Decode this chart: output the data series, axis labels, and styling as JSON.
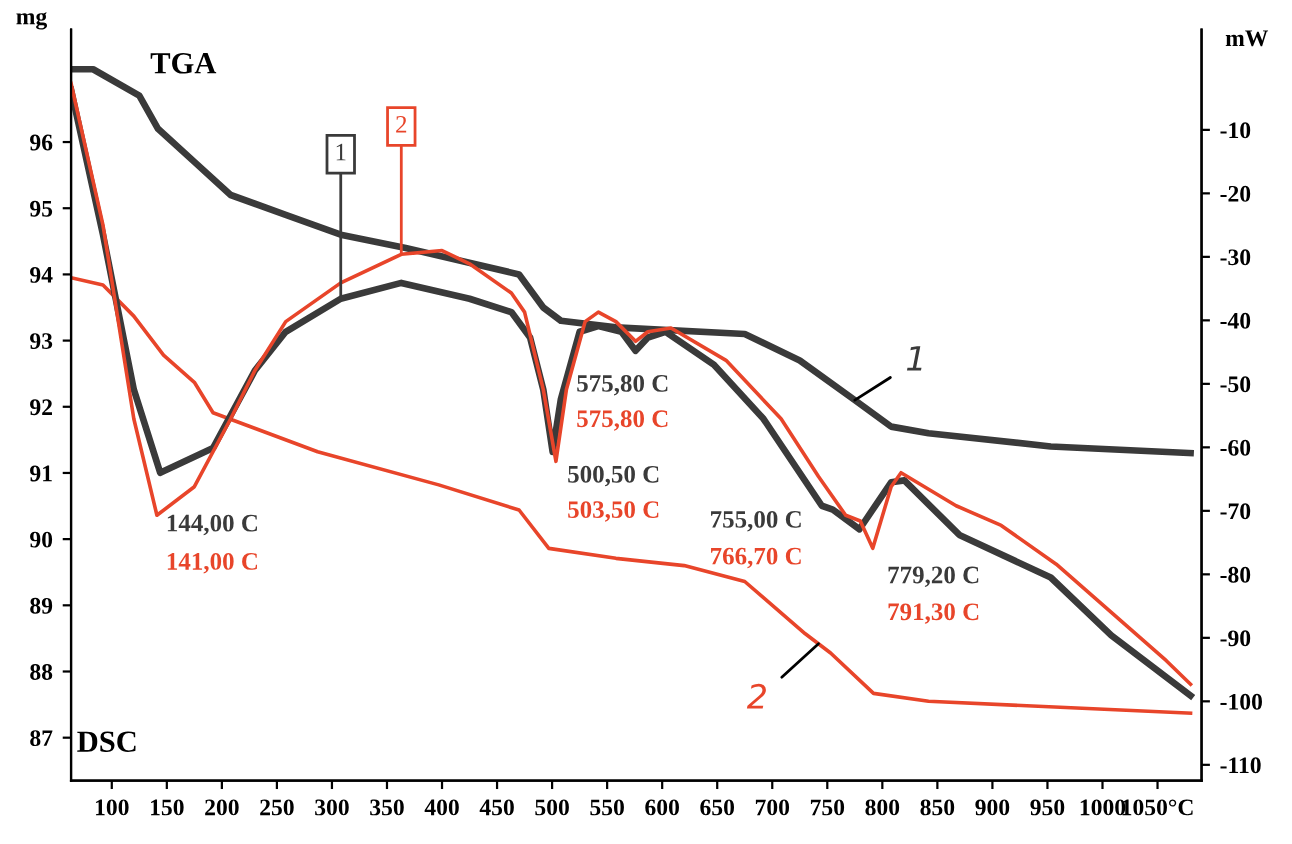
{
  "chart_data": {
    "type": "line",
    "ylabel": "mg",
    "y2label": "mW",
    "xlim": [
      63,
      1090
    ],
    "xticks": [
      100,
      150,
      200,
      250,
      300,
      350,
      400,
      450,
      500,
      550,
      600,
      650,
      700,
      750,
      800,
      850,
      900,
      950,
      1000,
      {
        "value": 1050,
        "label": "1050°C"
      }
    ],
    "ylim": [
      86.35,
      97.7
    ],
    "yticks": [
      87,
      88,
      89,
      90,
      91,
      92,
      93,
      94,
      95,
      96
    ],
    "y2lim": [
      -112.5,
      5.8
    ],
    "y2ticks": [
      -10,
      -20,
      -30,
      -40,
      -50,
      -60,
      -70,
      -80,
      -90,
      -100,
      -110
    ],
    "marker": "none",
    "grid": false,
    "series": [
      {
        "name": "1",
        "color": "#3a3a3a",
        "x": [
          63,
          83,
          125,
          142,
          175,
          208,
          258,
          308,
          367,
          470,
          492,
          508,
          558,
          675,
          725,
          775,
          808,
          842,
          953,
          1080
        ],
        "values": [
          97.1,
          97.1,
          96.7,
          96.2,
          95.7,
          95.2,
          94.9,
          94.6,
          94.4,
          94.0,
          93.5,
          93.3,
          93.2,
          93.1,
          92.7,
          92.1,
          91.7,
          91.6,
          91.4,
          91.3
        ]
      },
      {
        "name": "2",
        "color": "#e8452a",
        "x": [
          63,
          92,
          120,
          147,
          175,
          192,
          287,
          397,
          470,
          497,
          558,
          620,
          675,
          730,
          753,
          792,
          842,
          1080
        ],
        "values": [
          93.95,
          93.84,
          93.37,
          92.78,
          92.37,
          91.91,
          91.32,
          90.82,
          90.44,
          89.86,
          89.71,
          89.6,
          89.36,
          88.57,
          88.28,
          87.67,
          87.55,
          87.37
        ]
      },
      {
        "name": "1",
        "color": "#3a3a3a",
        "axis": "y2",
        "x": [
          63,
          92,
          120,
          144,
          192,
          230,
          258,
          308,
          363,
          425,
          463,
          480,
          492,
          500.5,
          508,
          525,
          542,
          563,
          575.8,
          587,
          603,
          647,
          692,
          745,
          755,
          779.2,
          808,
          820,
          870,
          953,
          1008,
          1080
        ],
        "values": [
          -3.7,
          -26.5,
          -50.9,
          -64.0,
          -60.1,
          -47.9,
          -41.8,
          -36.6,
          -34.1,
          -36.6,
          -38.7,
          -42.7,
          -50.9,
          -60.7,
          -52.4,
          -41.8,
          -40.9,
          -41.8,
          -44.8,
          -42.7,
          -41.8,
          -47.0,
          -55.5,
          -69.2,
          -69.8,
          -72.9,
          -65.5,
          -65.2,
          -73.8,
          -80.5,
          -89.6,
          -99.1
        ]
      },
      {
        "name": "2",
        "color": "#e8452a",
        "axis": "y2",
        "x": [
          63,
          92,
          120,
          141,
          175,
          208,
          230,
          258,
          308,
          363,
          400,
          425,
          463,
          475,
          492,
          503.5,
          513,
          530,
          542,
          558,
          575.8,
          587,
          608,
          658,
          708,
          742,
          766.7,
          780,
          791.3,
          808,
          817,
          867,
          908,
          958,
          1008,
          1058,
          1080
        ],
        "values": [
          -2.7,
          -25.0,
          -55.5,
          -70.7,
          -66.2,
          -55.5,
          -47.9,
          -40.2,
          -34.1,
          -29.6,
          -29.0,
          -31.1,
          -35.7,
          -38.7,
          -50.9,
          -62.2,
          -50.9,
          -40.2,
          -38.7,
          -40.2,
          -43.3,
          -41.8,
          -41.2,
          -46.3,
          -55.5,
          -64.6,
          -70.7,
          -71.6,
          -75.9,
          -66.2,
          -64.0,
          -69.2,
          -72.3,
          -78.4,
          -86.0,
          -93.6,
          -97.3
        ]
      }
    ],
    "annotations": [
      "TGA",
      "DSC",
      "144,00 C",
      "141,00 C",
      "500,50 C",
      "503,50 C",
      "575,80 C",
      "575,80 C",
      "755,00 C",
      "766,70 C",
      "779,20 C",
      "791,30 C"
    ]
  }
}
